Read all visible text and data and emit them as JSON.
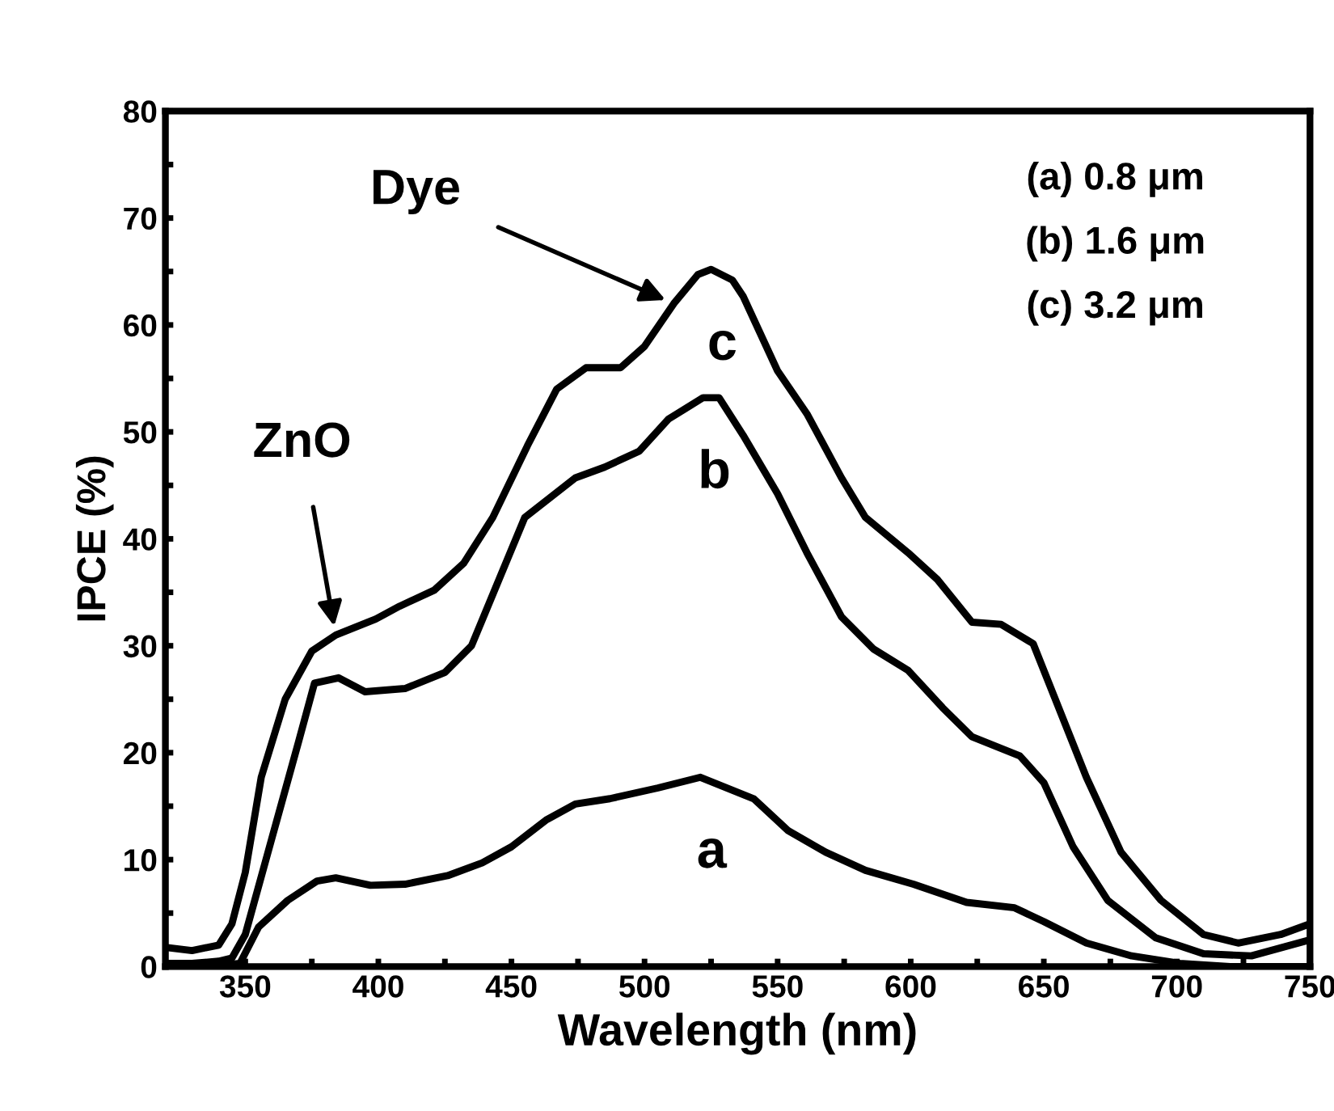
{
  "chart_data": {
    "type": "line",
    "xlabel": "Wavelength (nm)",
    "ylabel": "IPCE (%)",
    "xlim": [
      320,
      750
    ],
    "ylim": [
      0,
      80
    ],
    "xticks": [
      350,
      {
        "value": 375,
        "label": null
      },
      400,
      {
        "value": 425,
        "label": null
      },
      450,
      {
        "value": 475,
        "label": null
      },
      500,
      {
        "value": 525,
        "label": null
      },
      550,
      {
        "value": 575,
        "label": null
      },
      600,
      {
        "value": 625,
        "label": null
      },
      650,
      {
        "value": 675,
        "label": null
      },
      700,
      {
        "value": 725,
        "label": null
      },
      750
    ],
    "yticks": [
      0,
      {
        "value": 5,
        "label": null
      },
      10,
      {
        "value": 15,
        "label": null
      },
      20,
      {
        "value": 25,
        "label": null
      },
      30,
      {
        "value": 35,
        "label": null
      },
      40,
      {
        "value": 45,
        "label": null
      },
      50,
      {
        "value": 55,
        "label": null
      },
      60,
      {
        "value": 65,
        "label": null
      },
      70,
      {
        "value": 75,
        "label": null
      },
      80
    ],
    "grid": false,
    "legend": false,
    "series": [
      {
        "name": "a",
        "color": "#000000",
        "x": [
          320,
          330,
          340,
          348,
          355,
          366,
          377,
          384,
          397,
          410,
          426,
          439,
          450,
          463,
          474,
          487,
          505,
          521,
          531,
          541,
          554,
          568,
          583,
          601,
          621,
          639,
          650,
          666,
          683,
          701,
          720,
          750
        ],
        "values": [
          0,
          0,
          0.1,
          0.3,
          3.7,
          6.2,
          8,
          8.3,
          7.6,
          7.7,
          8.5,
          9.7,
          11.2,
          13.7,
          15.2,
          15.7,
          16.7,
          17.7,
          16.7,
          15.7,
          12.7,
          10.7,
          9,
          7.7,
          6,
          5.5,
          4.2,
          2.2,
          1,
          0.3,
          0,
          0
        ]
      },
      {
        "name": "b",
        "color": "#000000",
        "x": [
          320,
          330,
          340,
          345,
          350,
          360,
          370,
          376,
          385,
          395,
          410,
          425,
          435,
          445,
          455,
          474,
          485,
          498,
          509,
          522,
          528,
          537,
          550,
          561,
          574,
          586,
          599,
          612,
          623,
          641,
          650,
          661,
          674,
          692,
          710,
          728,
          750
        ],
        "values": [
          0.3,
          0.3,
          0.5,
          0.8,
          3,
          12,
          21,
          26.5,
          27,
          25.7,
          26,
          27.5,
          30,
          36,
          42,
          45.7,
          46.7,
          48.2,
          51.2,
          53.2,
          53.2,
          49.7,
          44.2,
          38.7,
          32.7,
          29.7,
          27.7,
          24.2,
          21.5,
          19.7,
          17.2,
          11.2,
          6.2,
          2.7,
          1.2,
          1,
          2.5
        ]
      },
      {
        "name": "c",
        "color": "#000000",
        "x": [
          320,
          330,
          340,
          345,
          350,
          356,
          365,
          375,
          384,
          399,
          408,
          421,
          432,
          443,
          456,
          467,
          478,
          491,
          500,
          511,
          520,
          525,
          533,
          537,
          550,
          561,
          574,
          583,
          599,
          610,
          623,
          634,
          646,
          654,
          666,
          679,
          694,
          710,
          723,
          739,
          750
        ],
        "values": [
          1.8,
          1.5,
          2,
          4,
          8.8,
          17.7,
          25,
          29.5,
          31,
          32.5,
          33.7,
          35.2,
          37.7,
          42,
          48.7,
          54,
          56,
          56,
          58,
          62,
          64.7,
          65.2,
          64.2,
          62.7,
          55.7,
          51.7,
          45.7,
          42,
          38.7,
          36.2,
          32.2,
          32,
          30.2,
          25.2,
          17.7,
          10.7,
          6.2,
          3,
          2.2,
          3,
          4
        ]
      }
    ],
    "annotations": [
      {
        "text": "ZnO",
        "x": 384,
        "y": 31
      },
      {
        "text": "Dye",
        "x": 511,
        "y": 62
      },
      "(a) 0.8 μm",
      "(b) 1.6 μm",
      "(c) 3.2 μm"
    ]
  }
}
